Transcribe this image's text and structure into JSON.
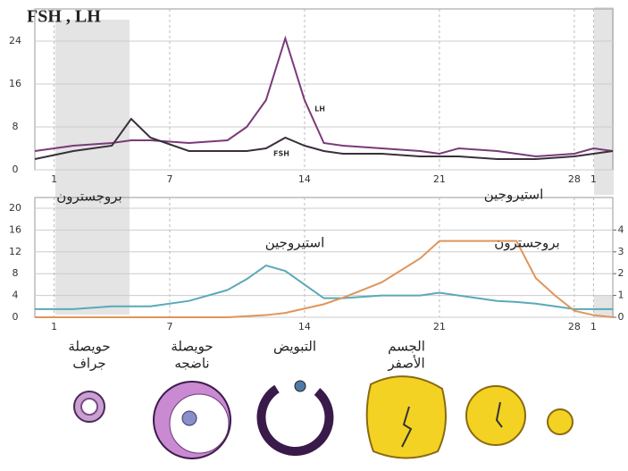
{
  "chart_data": [
    {
      "type": "line",
      "title": "FSH , LH",
      "x": [
        0,
        2,
        4,
        5,
        6,
        8,
        10,
        11,
        12,
        13,
        14,
        15,
        16,
        18,
        20,
        21,
        22,
        24,
        26,
        28,
        29,
        30
      ],
      "series": [
        {
          "name": "LH",
          "color": "#7a3a78",
          "values": [
            3.5,
            4.5,
            5,
            5.5,
            5.5,
            5,
            5.5,
            8,
            13,
            24.5,
            13,
            5,
            4.5,
            4,
            3.5,
            3,
            4,
            3.5,
            2.5,
            3,
            4,
            3.5
          ]
        },
        {
          "name": "FSH",
          "color": "#3a2f3c",
          "values": [
            2,
            3.5,
            4.5,
            9.5,
            6,
            3.5,
            3.5,
            3.5,
            4,
            6,
            4.5,
            3.5,
            3,
            3,
            2.5,
            2.5,
            2.5,
            2,
            2,
            2.5,
            3,
            3.5
          ]
        }
      ],
      "xlim": [
        0,
        30
      ],
      "xticks": [
        1,
        7,
        14,
        21,
        28,
        {
          "value": 29,
          "label": "1"
        }
      ],
      "ylim": [
        0,
        28
      ],
      "yticks": [
        0,
        8,
        16,
        24
      ],
      "grid": true
    },
    {
      "type": "line",
      "x": [
        0,
        2,
        4,
        6,
        8,
        10,
        11,
        12,
        13,
        14,
        15,
        16,
        18,
        20,
        21,
        22,
        24,
        25,
        26,
        27,
        28,
        29,
        30
      ],
      "series": [
        {
          "name": "استيروجين",
          "color": "#5aa9b8",
          "values": [
            1.5,
            1.5,
            2,
            2,
            3,
            5,
            7,
            9.5,
            8.5,
            6,
            3.5,
            3.5,
            4,
            4,
            4.5,
            4,
            3,
            2.8,
            2.5,
            2,
            1.5,
            1.5,
            1.5
          ]
        },
        {
          "name": "بروجسترون",
          "color": "#e0955a",
          "axis": "y2",
          "values": [
            0,
            0,
            0,
            0,
            0,
            0,
            0.05,
            0.1,
            0.2,
            0.4,
            0.6,
            0.9,
            1.6,
            2.7,
            3.5,
            3.5,
            3.5,
            3.5,
            1.8,
            1,
            0.3,
            0.1,
            0
          ]
        }
      ],
      "annotations": [
        "بروجسترون",
        "استيروجين"
      ],
      "xlim": [
        0,
        30
      ],
      "xticks": [
        1,
        7,
        14,
        21,
        28,
        {
          "value": 29,
          "label": "1"
        }
      ],
      "ylim": [
        0,
        20
      ],
      "yticks": [
        0,
        4,
        8,
        12,
        16,
        20
      ],
      "y2lim": [
        0,
        5
      ],
      "y2ticks": [
        0,
        1,
        2,
        3,
        4
      ],
      "grid": true
    }
  ],
  "stages": [
    [
      "حويصلة",
      "جراف"
    ],
    [
      "حويصلة",
      "ناضجه"
    ],
    [
      "التبويض"
    ],
    [
      "الجسم",
      "الأصفر"
    ]
  ]
}
